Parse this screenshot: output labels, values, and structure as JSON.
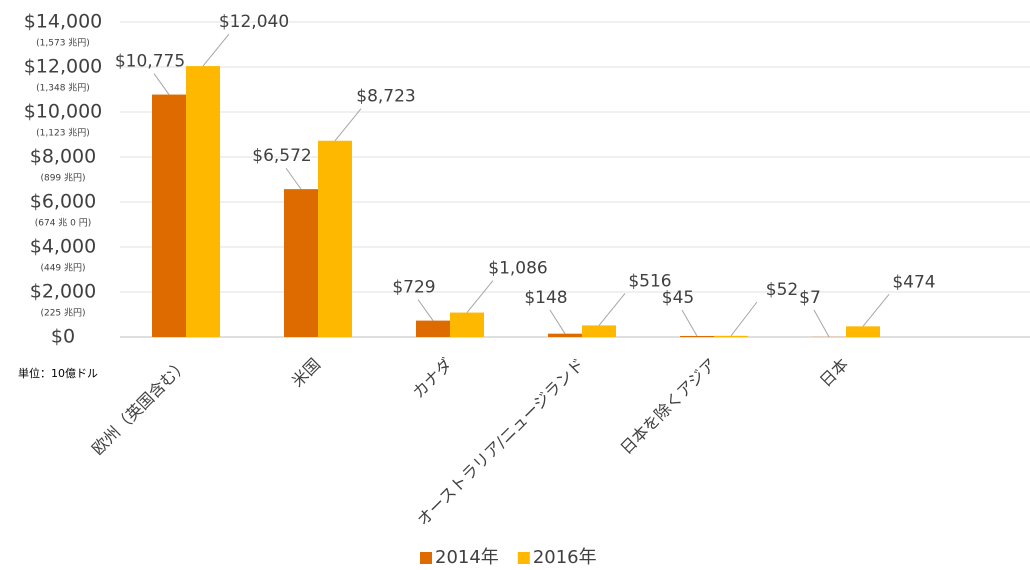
{
  "chart_data": {
    "type": "bar",
    "categories": [
      "欧州（英国含む）",
      "米国",
      "カナダ",
      "オーストラリア/ニュージランド",
      "日本を除くアジア",
      "日本"
    ],
    "series": [
      {
        "name": "2014年",
        "color": "#DD6B00",
        "values": [
          10775,
          6572,
          729,
          148,
          45,
          7
        ],
        "value_labels": [
          "$10,775",
          "$6,572",
          "$729",
          "$148",
          "$45",
          "$7"
        ]
      },
      {
        "name": "2016年",
        "color": "#FFB800",
        "values": [
          12040,
          8723,
          1086,
          516,
          52,
          474
        ],
        "value_labels": [
          "$12,040",
          "$8,723",
          "$1,086",
          "$516",
          "$52",
          "$474"
        ]
      }
    ],
    "ylim": [
      0,
      14000
    ],
    "yticks": [
      {
        "value": 0,
        "label": "$0"
      },
      {
        "value": 2000,
        "label": "$2,000"
      },
      {
        "value": 4000,
        "label": "$4,000"
      },
      {
        "value": 6000,
        "label": "$6,000"
      },
      {
        "value": 8000,
        "label": "$8,000"
      },
      {
        "value": 10000,
        "label": "$10,000"
      },
      {
        "value": 12000,
        "label": "$12,000"
      },
      {
        "value": 14000,
        "label": "$14,000"
      }
    ],
    "ytick_sublabels": [
      null,
      "(225 兆円)",
      "(449 兆円)",
      "(674 兆 0 円)",
      "(899 兆円)",
      "(1,123 兆円)",
      "(1,348 兆円)",
      "(1,573 兆円)"
    ],
    "unit_note": "単位：10億ドル",
    "grid": true,
    "legend": "bottom"
  }
}
